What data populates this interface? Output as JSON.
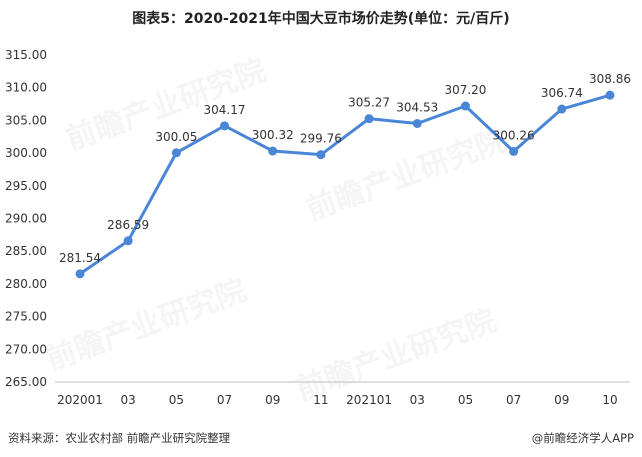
{
  "title": "图表5：2020-2021年中国大豆市场价走势(单位：元/百斤)",
  "footer": {
    "source": "资料来源：农业农村部 前瞻产业研究院整理",
    "brand": "@前瞻经济学人APP"
  },
  "watermark": "前瞻产业研究院",
  "colors": {
    "line": "#4a86d8",
    "axis": "#bfbfbf",
    "text": "#333333"
  },
  "chart_data": {
    "type": "line",
    "title": "图表5：2020-2021年中国大豆市场价走势(单位：元/百斤)",
    "categories": [
      "202001",
      "03",
      "05",
      "07",
      "09",
      "11",
      "202101",
      "03",
      "05",
      "07",
      "09",
      "10"
    ],
    "values": [
      281.54,
      286.59,
      300.05,
      304.17,
      300.32,
      299.76,
      305.27,
      304.53,
      307.2,
      300.26,
      306.74,
      308.86
    ],
    "ylim": [
      265.0,
      315.0
    ],
    "yticks": [
      265.0,
      270.0,
      275.0,
      280.0,
      285.0,
      290.0,
      295.0,
      300.0,
      305.0,
      310.0,
      315.0
    ],
    "grid": false,
    "legend": "none"
  }
}
